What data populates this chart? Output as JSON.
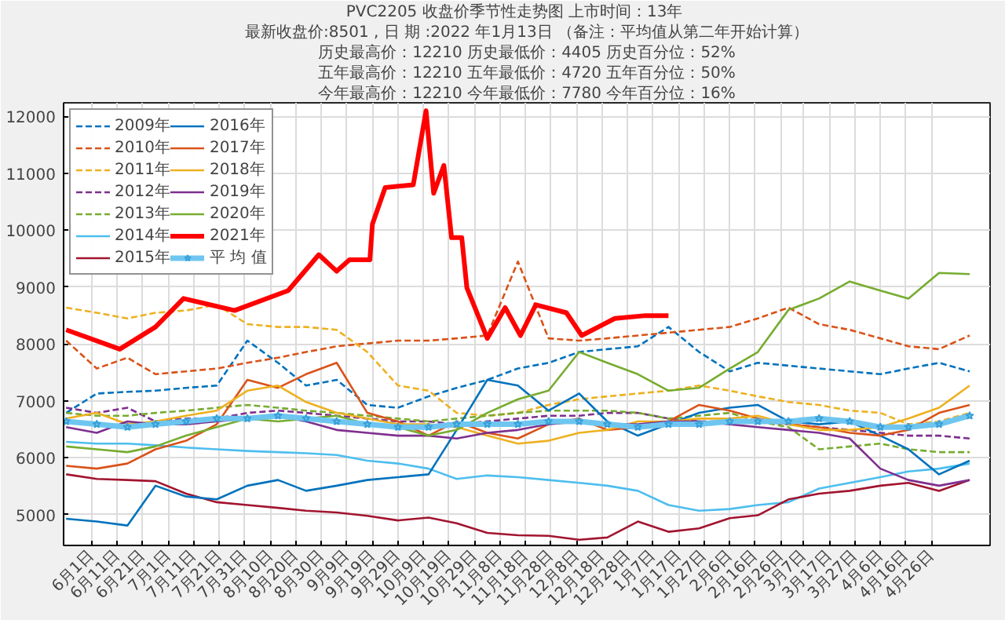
{
  "chart_data": {
    "type": "line",
    "title": "PVC2205  收盘价季节性走势图     上市时间：13年",
    "subtitle": "最新收盘价:8501 , 日 期 :2022 年1月13日 （备注：平均值从第二年开始计算）",
    "annotations": [
      "历史最高价：12210 历史最低价：4405 历史百分位：52%",
      "五年最高价：12210 五年最低价：4720 五年百分位：50%",
      "今年最高价：12210 今年最低价：7780 今年百分位：16%"
    ],
    "x": [
      "2021-05-22",
      "2021-06-03",
      "2021-06-15",
      "2021-06-26",
      "2021-07-08",
      "2021-07-20",
      "2021-08-01",
      "2021-08-13",
      "2021-08-24",
      "2021-09-05",
      "2021-09-17",
      "2021-09-29",
      "2021-10-11",
      "2021-10-22",
      "2021-11-03",
      "2021-11-15",
      "2021-11-27",
      "2021-12-09",
      "2021-12-20",
      "2022-01-01",
      "2022-01-13",
      "2022-01-25",
      "2022-02-06",
      "2022-02-17",
      "2022-03-01",
      "2022-03-13",
      "2022-03-25",
      "2022-04-06",
      "2022-04-17",
      "2022-04-29",
      "2022-05-11"
    ],
    "xlim": [
      "2021-05-21",
      "2022-05-19"
    ],
    "xticks": [
      {
        "value": "2021-06-01",
        "label": "6月1日"
      },
      {
        "value": "2021-06-11",
        "label": "6月11日"
      },
      {
        "value": "2021-06-21",
        "label": "6月21日"
      },
      {
        "value": "2021-07-01",
        "label": "7月1日"
      },
      {
        "value": "2021-07-11",
        "label": "7月11日"
      },
      {
        "value": "2021-07-21",
        "label": "7月21日"
      },
      {
        "value": "2021-07-31",
        "label": "7月31日"
      },
      {
        "value": "2021-08-10",
        "label": "8月10日"
      },
      {
        "value": "2021-08-20",
        "label": "8月20日"
      },
      {
        "value": "2021-08-30",
        "label": "8月30日"
      },
      {
        "value": "2021-09-09",
        "label": "9月9日"
      },
      {
        "value": "2021-09-19",
        "label": "9月19日"
      },
      {
        "value": "2021-09-29",
        "label": "9月29日"
      },
      {
        "value": "2021-10-09",
        "label": "10月9日"
      },
      {
        "value": "2021-10-19",
        "label": "10月19日"
      },
      {
        "value": "2021-10-29",
        "label": "10月29日"
      },
      {
        "value": "2021-11-08",
        "label": "11月8日"
      },
      {
        "value": "2021-11-18",
        "label": "11月18日"
      },
      {
        "value": "2021-11-28",
        "label": "11月28日"
      },
      {
        "value": "2021-12-08",
        "label": "12月8日"
      },
      {
        "value": "2021-12-18",
        "label": "12月18日"
      },
      {
        "value": "2021-12-28",
        "label": "12月28日"
      },
      {
        "value": "2022-01-07",
        "label": "1月7日"
      },
      {
        "value": "2022-01-17",
        "label": "1月17日"
      },
      {
        "value": "2022-01-27",
        "label": "1月27日"
      },
      {
        "value": "2022-02-06",
        "label": "2月6日"
      },
      {
        "value": "2022-02-16",
        "label": "2月16日"
      },
      {
        "value": "2022-02-26",
        "label": "2月26日"
      },
      {
        "value": "2022-03-07",
        "label": "3月7日"
      },
      {
        "value": "2022-03-17",
        "label": "3月17日"
      },
      {
        "value": "2022-03-27",
        "label": "3月27日"
      },
      {
        "value": "2022-04-06",
        "label": "4月6日"
      },
      {
        "value": "2022-04-16",
        "label": "4月16日"
      },
      {
        "value": "2022-04-26",
        "label": "4月26日"
      }
    ],
    "ylim": [
      4460,
      12240
    ],
    "yticks": [
      5000,
      6000,
      7000,
      8000,
      9000,
      10000,
      11000,
      12000
    ],
    "grid": true,
    "legend": "top left",
    "series": [
      {
        "name": "2009年",
        "color": "#0072bd",
        "line_style": "dashed",
        "values": [
          6790,
          7130,
          7160,
          7180,
          7230,
          7270,
          8060,
          7670,
          7270,
          7370,
          6930,
          6880,
          7080,
          7230,
          7370,
          7570,
          7670,
          7860,
          7910,
          7960,
          8300,
          7860,
          7520,
          7670,
          7620,
          7570,
          7520,
          7470,
          7570,
          7670,
          7520
        ]
      },
      {
        "name": "2010年",
        "color": "#d95319",
        "line_style": "dashed",
        "values": [
          8060,
          7570,
          7760,
          7470,
          7520,
          7570,
          7670,
          7760,
          7860,
          7960,
          8010,
          8060,
          8060,
          8100,
          8150,
          9450,
          8100,
          8060,
          8100,
          8150,
          8200,
          8250,
          8300,
          8450,
          8640,
          8350,
          8250,
          8100,
          7960,
          7910,
          8150
        ]
      },
      {
        "name": "2011年",
        "color": "#edb120",
        "line_style": "dashed",
        "values": [
          8640,
          8550,
          8450,
          8550,
          8590,
          8690,
          8350,
          8300,
          8300,
          8250,
          7860,
          7270,
          7180,
          6790,
          6740,
          6790,
          6930,
          7030,
          7080,
          7130,
          7180,
          7270,
          7180,
          7080,
          6980,
          6930,
          6830,
          6790,
          6590,
          6640,
          6790
        ]
      },
      {
        "name": "2012年",
        "color": "#7e2f8e",
        "line_style": "dashed",
        "values": [
          6880,
          6790,
          6880,
          6640,
          6690,
          6690,
          6790,
          6830,
          6790,
          6740,
          6690,
          6640,
          6640,
          6590,
          6640,
          6690,
          6740,
          6740,
          6790,
          6790,
          6690,
          6640,
          6640,
          6640,
          6590,
          6540,
          6490,
          6440,
          6390,
          6390,
          6340
        ]
      },
      {
        "name": "2013年",
        "color": "#77ac30",
        "line_style": "dashed",
        "values": [
          6790,
          6740,
          6740,
          6790,
          6830,
          6880,
          6930,
          6880,
          6830,
          6790,
          6740,
          6690,
          6640,
          6690,
          6740,
          6790,
          6830,
          6830,
          6830,
          6790,
          6690,
          6740,
          6790,
          6640,
          6540,
          6150,
          6200,
          6250,
          6150,
          6100,
          6100
        ]
      },
      {
        "name": "2014年",
        "color": "#4dbeee",
        "line_style": "solid",
        "values": [
          6280,
          6250,
          6250,
          6220,
          6180,
          6150,
          6120,
          6100,
          6080,
          6050,
          5950,
          5900,
          5810,
          5630,
          5690,
          5660,
          5610,
          5560,
          5510,
          5420,
          5170,
          5070,
          5100,
          5170,
          5220,
          5460,
          5560,
          5660,
          5760,
          5810,
          5900
        ]
      },
      {
        "name": "2015年",
        "color": "#a2142f",
        "line_style": "solid",
        "values": [
          5710,
          5630,
          5610,
          5590,
          5370,
          5220,
          5170,
          5120,
          5070,
          5040,
          4980,
          4900,
          4950,
          4850,
          4680,
          4640,
          4630,
          4560,
          4600,
          4880,
          4700,
          4760,
          4940,
          4990,
          5270,
          5370,
          5420,
          5510,
          5560,
          5420,
          5610
        ]
      },
      {
        "name": "2016年",
        "color": "#0072bd",
        "line_style": "solid",
        "values": [
          4930,
          4880,
          4810,
          5510,
          5320,
          5270,
          5510,
          5610,
          5420,
          5510,
          5610,
          5660,
          5710,
          6490,
          7370,
          7270,
          6830,
          7130,
          6640,
          6390,
          6590,
          6790,
          6880,
          6930,
          6640,
          6590,
          6640,
          6390,
          6150,
          5710,
          5950
        ]
      },
      {
        "name": "2017年",
        "color": "#d95319",
        "line_style": "solid",
        "values": [
          5860,
          5810,
          5900,
          6150,
          6300,
          6590,
          7370,
          7230,
          7470,
          7670,
          6790,
          6640,
          6390,
          6640,
          6440,
          6340,
          6590,
          6690,
          6490,
          6540,
          6640,
          6930,
          6830,
          6690,
          6590,
          6540,
          6440,
          6390,
          6490,
          6790,
          6930
        ]
      },
      {
        "name": "2018年",
        "color": "#edb120",
        "line_style": "solid",
        "values": [
          6690,
          6790,
          6590,
          6640,
          6740,
          6830,
          7180,
          7270,
          6980,
          6790,
          6690,
          6590,
          6590,
          6540,
          6390,
          6250,
          6300,
          6440,
          6490,
          6640,
          6640,
          6690,
          6690,
          6740,
          6590,
          6490,
          6490,
          6540,
          6690,
          6880,
          7270
        ]
      },
      {
        "name": "2019年",
        "color": "#7e2f8e",
        "line_style": "solid",
        "values": [
          6540,
          6440,
          6640,
          6590,
          6590,
          6640,
          6690,
          6740,
          6640,
          6490,
          6440,
          6390,
          6390,
          6340,
          6440,
          6490,
          6590,
          6640,
          6590,
          6590,
          6640,
          6640,
          6590,
          6540,
          6490,
          6440,
          6340,
          5810,
          5610,
          5510,
          5610
        ]
      },
      {
        "name": "2020年",
        "color": "#77ac30",
        "line_style": "solid",
        "values": [
          6200,
          6150,
          6100,
          6200,
          6390,
          6540,
          6690,
          6640,
          6690,
          6740,
          6590,
          6540,
          6390,
          6490,
          6790,
          7030,
          7180,
          7860,
          7670,
          7470,
          7180,
          7230,
          7570,
          7860,
          8600,
          8800,
          9100,
          8940,
          8800,
          9250,
          9230
        ]
      },
      {
        "name": "2021年",
        "color": "#ff0000",
        "line_style": "solid",
        "x": [
          "2021-05-22",
          "2021-06-12",
          "2021-06-26",
          "2021-07-07",
          "2021-07-27",
          "2021-08-17",
          "2021-08-29",
          "2021-09-05",
          "2021-09-10",
          "2021-09-18",
          "2021-09-19",
          "2021-09-24",
          "2021-10-05",
          "2021-10-10",
          "2021-10-13",
          "2021-10-17",
          "2021-10-20",
          "2021-10-24",
          "2021-10-26",
          "2021-11-03",
          "2021-11-10",
          "2021-11-16",
          "2021-11-22",
          "2021-12-04",
          "2021-12-10",
          "2021-12-23",
          "2022-01-04",
          "2022-01-13"
        ],
        "values": [
          8250,
          7910,
          8300,
          8800,
          8590,
          8940,
          9570,
          9280,
          9480,
          9480,
          10110,
          10750,
          10800,
          12100,
          10650,
          11140,
          9870,
          9870,
          8990,
          8100,
          8640,
          8150,
          8690,
          8550,
          8150,
          8450,
          8500,
          8500
        ]
      },
      {
        "name": "平 均 值",
        "color": "#6ec6f0",
        "line_style": "solid",
        "marker": "star",
        "values": [
          6640,
          6590,
          6540,
          6590,
          6640,
          6690,
          6690,
          6740,
          6690,
          6640,
          6590,
          6540,
          6540,
          6590,
          6590,
          6590,
          6640,
          6640,
          6590,
          6540,
          6590,
          6590,
          6640,
          6640,
          6640,
          6690,
          6640,
          6540,
          6540,
          6590,
          6740
        ]
      }
    ]
  }
}
